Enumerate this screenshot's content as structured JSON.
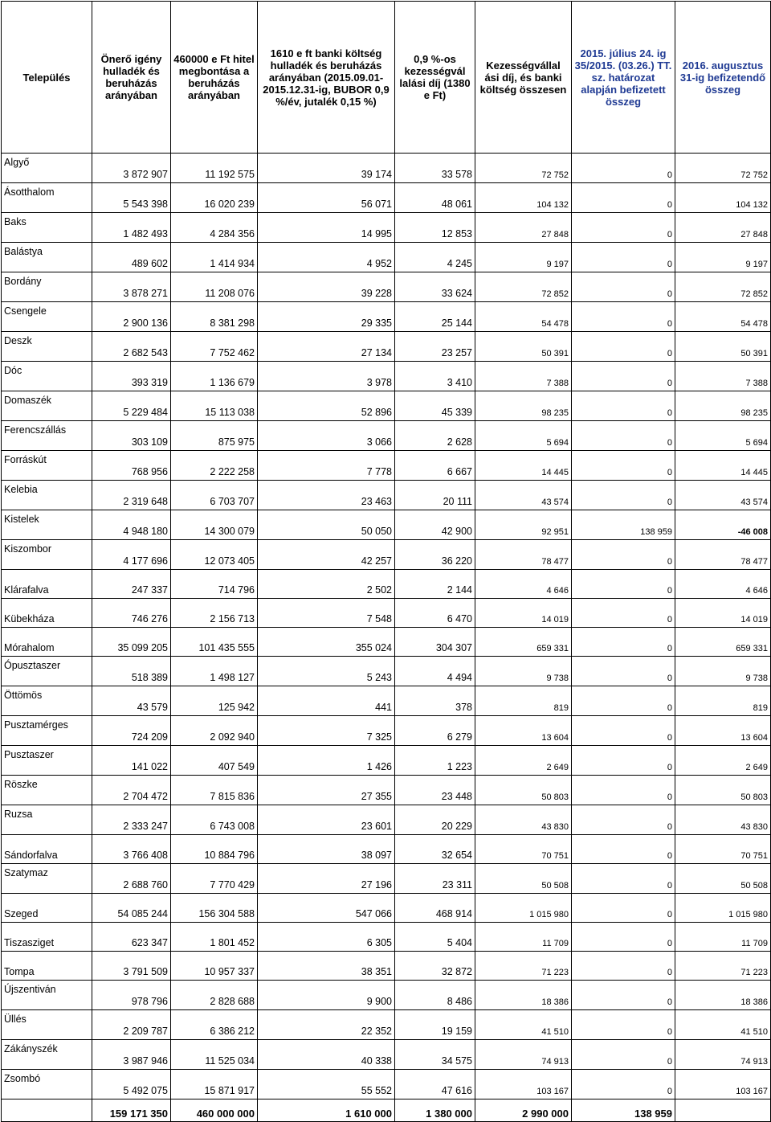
{
  "headers": [
    "Település",
    "Önerő igény hulladék és beruházás arányában",
    "460000 e Ft hitel megbontása a beruházás arányában",
    "1610 e ft banki költség hulladék és beruházás arányában (2015.09.01-2015.12.31-ig, BUBOR 0,9 %/év, jutalék 0,15 %)",
    "0,9 %-os kezességvál lalási díj (1380 e Ft)",
    "Kezességvállal ási díj, és banki költség összesen",
    "2015. július 24. ig 35/2015. (03.26.) TT. sz. határozat alapján befizetett összeg",
    "2016. augusztus 31-ig befizetendő összeg"
  ],
  "rows": [
    {
      "name": "Algyő",
      "c1": "3 872 907",
      "c2": "11 192 575",
      "c3": "39 174",
      "c4": "33 578",
      "c5": "72 752",
      "c6": "0",
      "c7": "72 752"
    },
    {
      "name": "Ásotthalom",
      "c1": "5 543 398",
      "c2": "16 020 239",
      "c3": "56 071",
      "c4": "48 061",
      "c5": "104 132",
      "c6": "0",
      "c7": "104 132"
    },
    {
      "name": "Baks",
      "c1": "1 482 493",
      "c2": "4 284 356",
      "c3": "14 995",
      "c4": "12 853",
      "c5": "27 848",
      "c6": "0",
      "c7": "27 848"
    },
    {
      "name": "Balástya",
      "c1": "489 602",
      "c2": "1 414 934",
      "c3": "4 952",
      "c4": "4 245",
      "c5": "9 197",
      "c6": "0",
      "c7": "9 197"
    },
    {
      "name": "Bordány",
      "c1": "3 878 271",
      "c2": "11 208 076",
      "c3": "39 228",
      "c4": "33 624",
      "c5": "72 852",
      "c6": "0",
      "c7": "72 852"
    },
    {
      "name": "Csengele",
      "c1": "2 900 136",
      "c2": "8 381 298",
      "c3": "29 335",
      "c4": "25 144",
      "c5": "54 478",
      "c6": "0",
      "c7": "54 478"
    },
    {
      "name": "Deszk",
      "c1": "2 682 543",
      "c2": "7 752 462",
      "c3": "27 134",
      "c4": "23 257",
      "c5": "50 391",
      "c6": "0",
      "c7": "50 391"
    },
    {
      "name": "Dóc",
      "c1": "393 319",
      "c2": "1 136 679",
      "c3": "3 978",
      "c4": "3 410",
      "c5": "7 388",
      "c6": "0",
      "c7": "7 388"
    },
    {
      "name": "Domaszék",
      "c1": "5 229 484",
      "c2": "15 113 038",
      "c3": "52 896",
      "c4": "45 339",
      "c5": "98 235",
      "c6": "0",
      "c7": "98 235"
    },
    {
      "name": "Ferencszállás",
      "c1": "303 109",
      "c2": "875 975",
      "c3": "3 066",
      "c4": "2 628",
      "c5": "5 694",
      "c6": "0",
      "c7": "5 694"
    },
    {
      "name": "Forráskút",
      "c1": "768 956",
      "c2": "2 222 258",
      "c3": "7 778",
      "c4": "6 667",
      "c5": "14 445",
      "c6": "0",
      "c7": "14 445"
    },
    {
      "name": "Kelebia",
      "c1": "2 319 648",
      "c2": "6 703 707",
      "c3": "23 463",
      "c4": "20 111",
      "c5": "43 574",
      "c6": "0",
      "c7": "43 574"
    },
    {
      "name": "Kistelek",
      "c1": "4 948 180",
      "c2": "14 300 079",
      "c3": "50 050",
      "c4": "42 900",
      "c5": "92 951",
      "c6": "138 959",
      "c7": "-46 008",
      "neg": true
    },
    {
      "name": "Kiszombor",
      "c1": "4 177 696",
      "c2": "12 073 405",
      "c3": "42 257",
      "c4": "36 220",
      "c5": "78 477",
      "c6": "0",
      "c7": "78 477"
    },
    {
      "name": "Klárafalva",
      "c1": "247 337",
      "c2": "714 796",
      "c3": "2 502",
      "c4": "2 144",
      "c5": "4 646",
      "c6": "0",
      "c7": "4 646",
      "single": true
    },
    {
      "name": "Kübekháza",
      "c1": "746 276",
      "c2": "2 156 713",
      "c3": "7 548",
      "c4": "6 470",
      "c5": "14 019",
      "c6": "0",
      "c7": "14 019",
      "single": true
    },
    {
      "name": "Mórahalom",
      "c1": "35 099 205",
      "c2": "101 435 555",
      "c3": "355 024",
      "c4": "304 307",
      "c5": "659 331",
      "c6": "0",
      "c7": "659 331",
      "single": true
    },
    {
      "name": "Ópusztaszer",
      "c1": "518 389",
      "c2": "1 498 127",
      "c3": "5 243",
      "c4": "4 494",
      "c5": "9 738",
      "c6": "0",
      "c7": "9 738"
    },
    {
      "name": "Öttömös",
      "c1": "43 579",
      "c2": "125 942",
      "c3": "441",
      "c4": "378",
      "c5": "819",
      "c6": "0",
      "c7": "819"
    },
    {
      "name": "Pusztamérges",
      "c1": "724 209",
      "c2": "2 092 940",
      "c3": "7 325",
      "c4": "6 279",
      "c5": "13 604",
      "c6": "0",
      "c7": "13 604"
    },
    {
      "name": "Pusztaszer",
      "c1": "141 022",
      "c2": "407 549",
      "c3": "1 426",
      "c4": "1 223",
      "c5": "2 649",
      "c6": "0",
      "c7": "2 649"
    },
    {
      "name": "Röszke",
      "c1": "2 704 472",
      "c2": "7 815 836",
      "c3": "27 355",
      "c4": "23 448",
      "c5": "50 803",
      "c6": "0",
      "c7": "50 803"
    },
    {
      "name": "Ruzsa",
      "c1": "2 333 247",
      "c2": "6 743 008",
      "c3": "23 601",
      "c4": "20 229",
      "c5": "43 830",
      "c6": "0",
      "c7": "43 830"
    },
    {
      "name": "Sándorfalva",
      "c1": "3 766 408",
      "c2": "10 884 796",
      "c3": "38 097",
      "c4": "32 654",
      "c5": "70 751",
      "c6": "0",
      "c7": "70 751",
      "single": true
    },
    {
      "name": "Szatymaz",
      "c1": "2 688 760",
      "c2": "7 770 429",
      "c3": "27 196",
      "c4": "23 311",
      "c5": "50 508",
      "c6": "0",
      "c7": "50 508"
    },
    {
      "name": "Szeged",
      "c1": "54 085 244",
      "c2": "156 304 588",
      "c3": "547 066",
      "c4": "468 914",
      "c5": "1 015 980",
      "c6": "0",
      "c7": "1 015 980",
      "single": true
    },
    {
      "name": "Tiszasziget",
      "c1": "623 347",
      "c2": "1 801 452",
      "c3": "6 305",
      "c4": "5 404",
      "c5": "11 709",
      "c6": "0",
      "c7": "11 709",
      "single": true
    },
    {
      "name": "Tompa",
      "c1": "3 791 509",
      "c2": "10 957 337",
      "c3": "38 351",
      "c4": "32 872",
      "c5": "71 223",
      "c6": "0",
      "c7": "71 223",
      "single": true
    },
    {
      "name": "Újszentiván",
      "c1": "978 796",
      "c2": "2 828 688",
      "c3": "9 900",
      "c4": "8 486",
      "c5": "18 386",
      "c6": "0",
      "c7": "18 386"
    },
    {
      "name": "Üllés",
      "c1": "2 209 787",
      "c2": "6 386 212",
      "c3": "22 352",
      "c4": "19 159",
      "c5": "41 510",
      "c6": "0",
      "c7": "41 510"
    },
    {
      "name": "Zákányszék",
      "c1": "3 987 946",
      "c2": "11 525 034",
      "c3": "40 338",
      "c4": "34 575",
      "c5": "74 913",
      "c6": "0",
      "c7": "74 913"
    },
    {
      "name": "Zsombó",
      "c1": "5 492 075",
      "c2": "15 871 917",
      "c3": "55 552",
      "c4": "47 616",
      "c5": "103 167",
      "c6": "0",
      "c7": "103 167"
    }
  ],
  "totals": {
    "c1": "159 171 350",
    "c2": "460 000 000",
    "c3": "1 610 000",
    "c4": "1 380 000",
    "c5": "2 990 000",
    "c6": "138 959",
    "c7": ""
  }
}
